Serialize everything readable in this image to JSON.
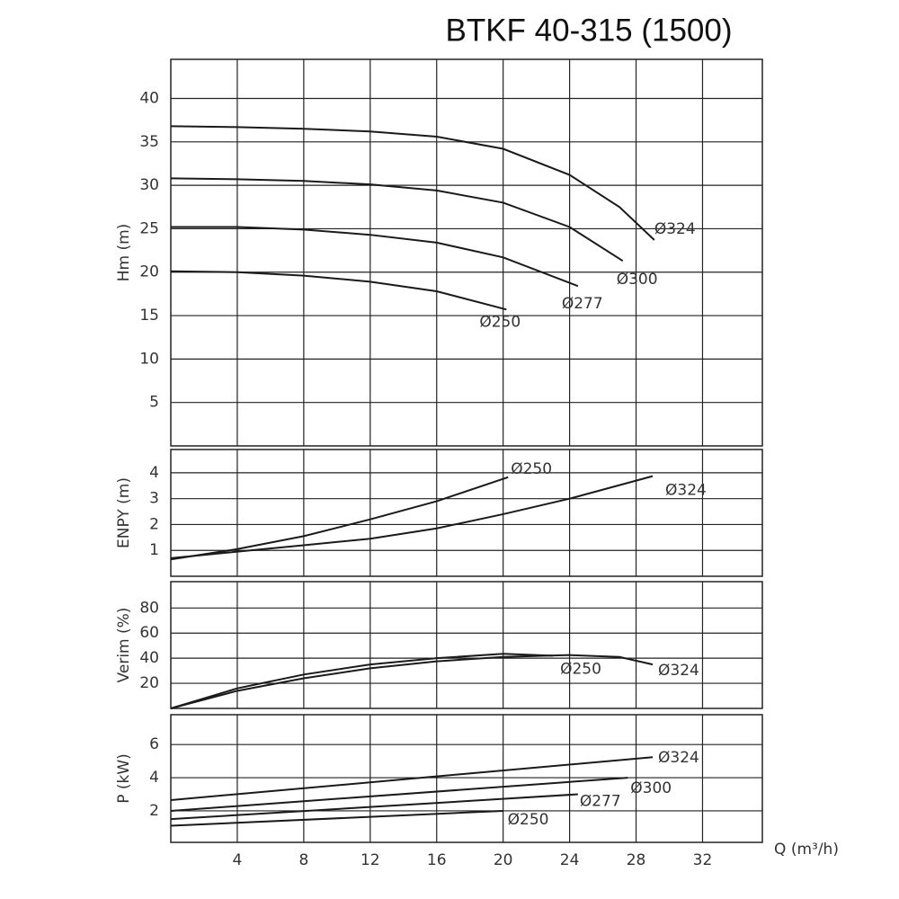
{
  "chart_data": [
    {
      "type": "line",
      "title": "BTKF 40-315 (1500)",
      "y_label": "Hm (m)",
      "color": "#1a1a1a",
      "grid": true,
      "xlim": [
        0,
        35.6
      ],
      "xticks": [
        4,
        8,
        12,
        16,
        20,
        24,
        28,
        32
      ],
      "ylim": [
        0,
        44.5
      ],
      "yticks": [
        5,
        10,
        15,
        20,
        25,
        30,
        35,
        40
      ],
      "series": [
        {
          "name": "Ø324",
          "x": [
            0,
            4,
            8,
            12,
            16,
            20,
            24,
            27,
            29.1
          ],
          "values": [
            36.8,
            36.7,
            36.5,
            36.2,
            35.6,
            34.2,
            31.2,
            27.5,
            23.7
          ]
        },
        {
          "name": "Ø300",
          "x": [
            0,
            4,
            8,
            12,
            16,
            20,
            24,
            27.2
          ],
          "values": [
            30.8,
            30.7,
            30.5,
            30.1,
            29.4,
            28,
            25.2,
            21.3
          ]
        },
        {
          "name": "Ø277",
          "x": [
            0,
            4,
            8,
            12,
            16,
            20,
            24.5
          ],
          "values": [
            25.2,
            25.2,
            24.9,
            24.3,
            23.4,
            21.7,
            18.4
          ]
        },
        {
          "name": "Ø250",
          "x": [
            0,
            4,
            8,
            12,
            16,
            20.2
          ],
          "values": [
            20.1,
            20,
            19.6,
            18.9,
            17.8,
            15.7
          ]
        }
      ]
    },
    {
      "type": "line",
      "y_label": "ENPY (m)",
      "color": "#1a1a1a",
      "grid": true,
      "xlim": [
        0,
        35.6
      ],
      "xticks": [
        4,
        8,
        12,
        16,
        20,
        24,
        28,
        32
      ],
      "ylim": [
        0,
        4.9
      ],
      "yticks": [
        1,
        2,
        3,
        4
      ],
      "series": [
        {
          "name": "Ø250",
          "x": [
            0,
            4,
            8,
            12,
            16,
            20.3
          ],
          "values": [
            0.65,
            1.05,
            1.55,
            2.2,
            2.9,
            3.83
          ]
        },
        {
          "name": "Ø324",
          "x": [
            0,
            4,
            8,
            12,
            16,
            20,
            24,
            29
          ],
          "values": [
            0.7,
            0.95,
            1.2,
            1.45,
            1.85,
            2.4,
            3.0,
            3.87
          ]
        }
      ]
    },
    {
      "type": "line",
      "y_label": "Verim (%)",
      "color": "#1a1a1a",
      "grid": true,
      "xlim": [
        0,
        35.6
      ],
      "xticks": [
        4,
        8,
        12,
        16,
        20,
        24,
        28,
        32
      ],
      "ylim": [
        0,
        101
      ],
      "yticks": [
        20,
        40,
        60,
        80
      ],
      "series": [
        {
          "name": "Ø250",
          "x": [
            0,
            4,
            8,
            12,
            16,
            20,
            23
          ],
          "values": [
            0,
            16,
            27,
            35,
            40,
            43.5,
            42
          ]
        },
        {
          "name": "Ø324",
          "x": [
            0,
            4,
            8,
            12,
            16,
            20,
            24,
            27,
            29
          ],
          "values": [
            0,
            14,
            24,
            32,
            37.5,
            41,
            42.5,
            41,
            35
          ]
        }
      ]
    },
    {
      "type": "line",
      "y_label": "P (kW)",
      "x_label": "Q (m³/h)",
      "color": "#1a1a1a",
      "grid": true,
      "xlim": [
        0,
        35.6
      ],
      "xticks": [
        4,
        8,
        12,
        16,
        20,
        24,
        28,
        32
      ],
      "ylim": [
        0.1,
        7.8
      ],
      "yticks": [
        2,
        4,
        6
      ],
      "series": [
        {
          "name": "Ø324",
          "x": [
            0,
            29
          ],
          "values": [
            2.65,
            5.24
          ]
        },
        {
          "name": "Ø300",
          "x": [
            0,
            27.5
          ],
          "values": [
            2.0,
            4.0
          ]
        },
        {
          "name": "Ø277",
          "x": [
            0,
            24.5
          ],
          "values": [
            1.5,
            3.0
          ]
        },
        {
          "name": "Ø250",
          "x": [
            0,
            20
          ],
          "values": [
            1.1,
            2.0
          ]
        }
      ]
    }
  ]
}
